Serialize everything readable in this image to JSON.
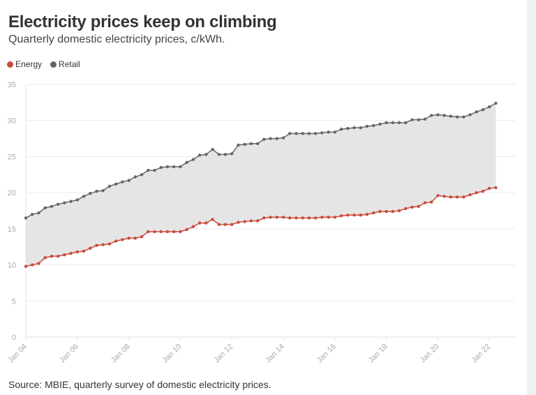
{
  "header": {
    "title": "Electricity prices keep on climbing",
    "subtitle": "Quarterly domestic electricity prices, c/kWh."
  },
  "footer": {
    "source": "Source: MBIE, quarterly survey of domestic electricity prices."
  },
  "chart_data": {
    "type": "area",
    "title": "Electricity prices keep on climbing",
    "subtitle": "Quarterly domestic electricity prices, c/kWh.",
    "xlabel": "",
    "ylabel": "",
    "ylim": [
      0,
      35
    ],
    "yticks": [
      0,
      5,
      10,
      15,
      20,
      25,
      30,
      35
    ],
    "xticks": [
      "Jan 04",
      "Jan 06",
      "Jan 08",
      "Jan 10",
      "Jan 12",
      "Jan 14",
      "Jan 16",
      "Jan 18",
      "Jan 20",
      "Jan 22"
    ],
    "grid": true,
    "legend": "top-left",
    "fill_between_series": true,
    "fill_color": "#e5e5e5",
    "x": [
      "2004-01",
      "2004-04",
      "2004-07",
      "2004-10",
      "2005-01",
      "2005-04",
      "2005-07",
      "2005-10",
      "2006-01",
      "2006-04",
      "2006-07",
      "2006-10",
      "2007-01",
      "2007-04",
      "2007-07",
      "2007-10",
      "2008-01",
      "2008-04",
      "2008-07",
      "2008-10",
      "2009-01",
      "2009-04",
      "2009-07",
      "2009-10",
      "2010-01",
      "2010-04",
      "2010-07",
      "2010-10",
      "2011-01",
      "2011-04",
      "2011-07",
      "2011-10",
      "2012-01",
      "2012-04",
      "2012-07",
      "2012-10",
      "2013-01",
      "2013-04",
      "2013-07",
      "2013-10",
      "2014-01",
      "2014-04",
      "2014-07",
      "2014-10",
      "2015-01",
      "2015-04",
      "2015-07",
      "2015-10",
      "2016-01",
      "2016-04",
      "2016-07",
      "2016-10",
      "2017-01",
      "2017-04",
      "2017-07",
      "2017-10",
      "2018-01",
      "2018-04",
      "2018-07",
      "2018-10",
      "2019-01",
      "2019-04",
      "2019-07",
      "2019-10",
      "2020-01",
      "2020-04",
      "2020-07",
      "2020-10",
      "2021-01",
      "2021-04",
      "2021-07",
      "2021-10",
      "2022-01",
      "2022-04"
    ],
    "series": [
      {
        "name": "Energy",
        "color": "#c94a3b",
        "values": [
          9.8,
          10.0,
          10.2,
          11.0,
          11.2,
          11.2,
          11.4,
          11.6,
          11.8,
          11.9,
          12.3,
          12.7,
          12.8,
          12.9,
          13.3,
          13.5,
          13.7,
          13.7,
          13.9,
          14.6,
          14.6,
          14.6,
          14.6,
          14.6,
          14.6,
          14.9,
          15.3,
          15.8,
          15.8,
          16.3,
          15.6,
          15.6,
          15.6,
          15.9,
          16.0,
          16.1,
          16.1,
          16.5,
          16.6,
          16.6,
          16.6,
          16.5,
          16.5,
          16.5,
          16.5,
          16.5,
          16.6,
          16.6,
          16.6,
          16.8,
          16.9,
          16.9,
          16.9,
          17.0,
          17.2,
          17.4,
          17.4,
          17.4,
          17.5,
          17.8,
          18.0,
          18.1,
          18.6,
          18.7,
          19.6,
          19.5,
          19.4,
          19.4,
          19.4,
          19.7,
          20.0,
          20.2,
          20.6,
          20.7
        ]
      },
      {
        "name": "Retail",
        "color": "#666666",
        "values": [
          16.5,
          17.0,
          17.2,
          17.9,
          18.1,
          18.4,
          18.6,
          18.8,
          19.0,
          19.5,
          19.9,
          20.2,
          20.3,
          20.9,
          21.2,
          21.5,
          21.7,
          22.2,
          22.5,
          23.1,
          23.1,
          23.5,
          23.6,
          23.6,
          23.6,
          24.2,
          24.6,
          25.2,
          25.3,
          26.0,
          25.3,
          25.3,
          25.4,
          26.6,
          26.7,
          26.8,
          26.8,
          27.4,
          27.5,
          27.5,
          27.6,
          28.2,
          28.2,
          28.2,
          28.2,
          28.2,
          28.3,
          28.4,
          28.4,
          28.8,
          28.9,
          29.0,
          29.0,
          29.2,
          29.3,
          29.5,
          29.7,
          29.7,
          29.7,
          29.7,
          30.1,
          30.1,
          30.2,
          30.7,
          30.8,
          30.7,
          30.6,
          30.5,
          30.5,
          30.8,
          31.2,
          31.5,
          31.9,
          32.4
        ]
      }
    ]
  }
}
